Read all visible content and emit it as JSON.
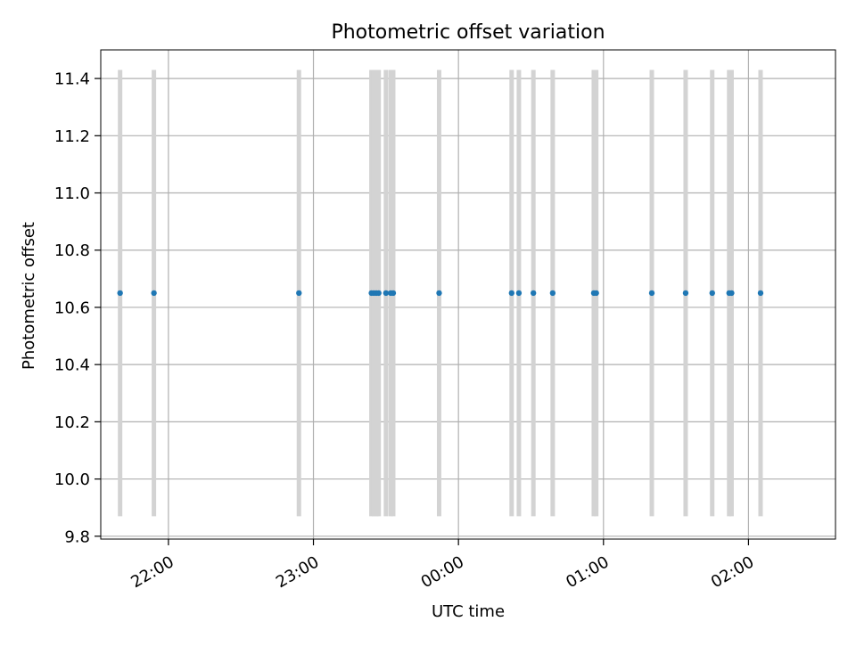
{
  "chart_data": {
    "type": "scatter",
    "title": "Photometric offset variation",
    "xlabel": "UTC time",
    "ylabel": "Photometric offset",
    "x_axis": {
      "type": "time",
      "range": [
        "21:32",
        "02:36"
      ],
      "tick_labels": [
        "22:00",
        "23:00",
        "00:00",
        "01:00",
        "02:00"
      ]
    },
    "y_axis": {
      "range": [
        9.79,
        11.5
      ],
      "ticks": [
        9.8,
        10.0,
        10.2,
        10.4,
        10.6,
        10.8,
        11.0,
        11.2,
        11.4
      ],
      "tick_labels": [
        "9.8",
        "10.0",
        "10.2",
        "10.4",
        "10.6",
        "10.8",
        "11.0",
        "11.2",
        "11.4"
      ]
    },
    "grid": true,
    "legend": "none",
    "series": [
      {
        "points": [
          {
            "x": "21:40",
            "y": 10.65,
            "err_low": 9.87,
            "err_high": 11.43
          },
          {
            "x": "21:54",
            "y": 10.65,
            "err_low": 9.87,
            "err_high": 11.43
          },
          {
            "x": "22:54",
            "y": 10.65,
            "err_low": 9.87,
            "err_high": 11.43
          },
          {
            "x": "23:24",
            "y": 10.65,
            "err_low": 9.87,
            "err_high": 11.43
          },
          {
            "x": "23:25",
            "y": 10.65,
            "err_low": 9.87,
            "err_high": 11.43
          },
          {
            "x": "23:26",
            "y": 10.65,
            "err_low": 9.87,
            "err_high": 11.43
          },
          {
            "x": "23:27",
            "y": 10.65,
            "err_low": 9.87,
            "err_high": 11.43
          },
          {
            "x": "23:30",
            "y": 10.65,
            "err_low": 9.87,
            "err_high": 11.43
          },
          {
            "x": "23:32",
            "y": 10.65,
            "err_low": 9.87,
            "err_high": 11.43
          },
          {
            "x": "23:33",
            "y": 10.65,
            "err_low": 9.87,
            "err_high": 11.43
          },
          {
            "x": "23:52",
            "y": 10.65,
            "err_low": 9.87,
            "err_high": 11.43
          },
          {
            "x": "00:22",
            "y": 10.65,
            "err_low": 9.87,
            "err_high": 11.43
          },
          {
            "x": "00:25",
            "y": 10.65,
            "err_low": 9.87,
            "err_high": 11.43
          },
          {
            "x": "00:31",
            "y": 10.65,
            "err_low": 9.87,
            "err_high": 11.43
          },
          {
            "x": "00:39",
            "y": 10.65,
            "err_low": 9.87,
            "err_high": 11.43
          },
          {
            "x": "00:56",
            "y": 10.65,
            "err_low": 9.87,
            "err_high": 11.43
          },
          {
            "x": "00:57",
            "y": 10.65,
            "err_low": 9.87,
            "err_high": 11.43
          },
          {
            "x": "01:20",
            "y": 10.65,
            "err_low": 9.87,
            "err_high": 11.43
          },
          {
            "x": "01:34",
            "y": 10.65,
            "err_low": 9.87,
            "err_high": 11.43
          },
          {
            "x": "01:45",
            "y": 10.65,
            "err_low": 9.87,
            "err_high": 11.43
          },
          {
            "x": "01:52",
            "y": 10.65,
            "err_low": 9.87,
            "err_high": 11.43
          },
          {
            "x": "01:53",
            "y": 10.65,
            "err_low": 9.87,
            "err_high": 11.43
          },
          {
            "x": "02:05",
            "y": 10.65,
            "err_low": 9.87,
            "err_high": 11.43
          }
        ]
      }
    ],
    "colors": {
      "marker": "#1f77b4",
      "errorbar": "#d3d3d3",
      "grid": "#b0b0b0",
      "axes": "#000000"
    }
  }
}
